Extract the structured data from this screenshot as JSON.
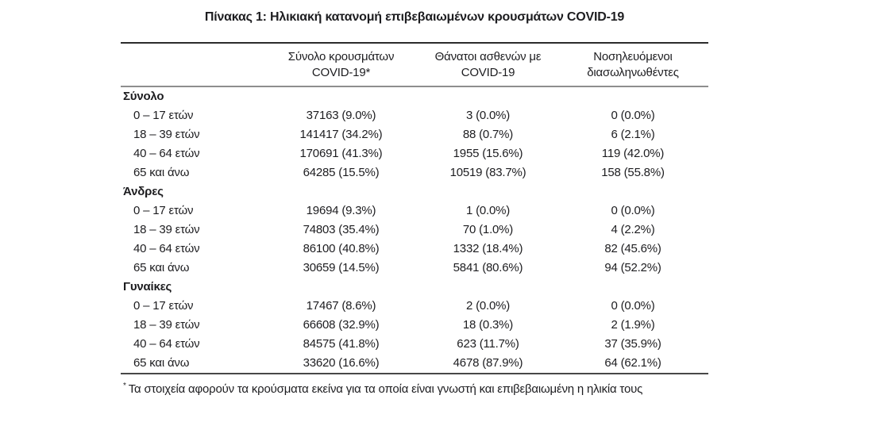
{
  "page": {
    "title": "Πίνακας 1: Ηλικιακή κατανομή επιβεβαιωμένων κρουσμάτων COVID-19"
  },
  "table": {
    "headers": {
      "cases": {
        "line1": "Σύνολο κρουσμάτων",
        "line2": "COVID-19*"
      },
      "deaths": {
        "line1": "Θάνατοι ασθενών με",
        "line2": "COVID-19"
      },
      "intubated": {
        "line1": "Νοσηλευόμενοι",
        "line2": "διασωληνωθέντες"
      }
    },
    "sections": [
      {
        "label": "Σύνολο",
        "rows": [
          {
            "age": "0 – 17 ετών",
            "cases": "37163 (9.0%)",
            "deaths": "3 (0.0%)",
            "intubated": "0 (0.0%)"
          },
          {
            "age": "18 – 39 ετών",
            "cases": "141417 (34.2%)",
            "deaths": "88 (0.7%)",
            "intubated": "6 (2.1%)"
          },
          {
            "age": "40 – 64 ετών",
            "cases": "170691 (41.3%)",
            "deaths": "1955 (15.6%)",
            "intubated": "119 (42.0%)"
          },
          {
            "age": "65 και άνω",
            "cases": "64285 (15.5%)",
            "deaths": "10519 (83.7%)",
            "intubated": "158 (55.8%)"
          }
        ]
      },
      {
        "label": "Άνδρες",
        "rows": [
          {
            "age": "0 – 17 ετών",
            "cases": "19694 (9.3%)",
            "deaths": "1 (0.0%)",
            "intubated": "0 (0.0%)"
          },
          {
            "age": "18 – 39 ετών",
            "cases": "74803 (35.4%)",
            "deaths": "70 (1.0%)",
            "intubated": "4 (2.2%)"
          },
          {
            "age": "40 – 64 ετών",
            "cases": "86100 (40.8%)",
            "deaths": "1332 (18.4%)",
            "intubated": "82 (45.6%)"
          },
          {
            "age": "65 και άνω",
            "cases": "30659 (14.5%)",
            "deaths": "5841 (80.6%)",
            "intubated": "94 (52.2%)"
          }
        ]
      },
      {
        "label": "Γυναίκες",
        "rows": [
          {
            "age": "0 – 17 ετών",
            "cases": "17467 (8.6%)",
            "deaths": "2 (0.0%)",
            "intubated": "0 (0.0%)"
          },
          {
            "age": "18 – 39 ετών",
            "cases": "66608 (32.9%)",
            "deaths": "18 (0.3%)",
            "intubated": "2 (1.9%)"
          },
          {
            "age": "40 – 64 ετών",
            "cases": "84575 (41.8%)",
            "deaths": "623 (11.7%)",
            "intubated": "37 (35.9%)"
          },
          {
            "age": "65 και άνω",
            "cases": "33620 (16.6%)",
            "deaths": "4678 (87.9%)",
            "intubated": "64 (62.1%)"
          }
        ]
      }
    ]
  },
  "footnote": {
    "marker": "*",
    "text": "Τα στοιχεία αφορούν τα κρούσματα εκείνα για τα οποία είναι γνωστή και επιβεβαιωμένη η ηλικία τους"
  },
  "colors": {
    "text": "#1d1d20",
    "rule_top": "#2b2b2b",
    "rule_header": "#8e8e8e",
    "rule_bottom": "#474747"
  }
}
